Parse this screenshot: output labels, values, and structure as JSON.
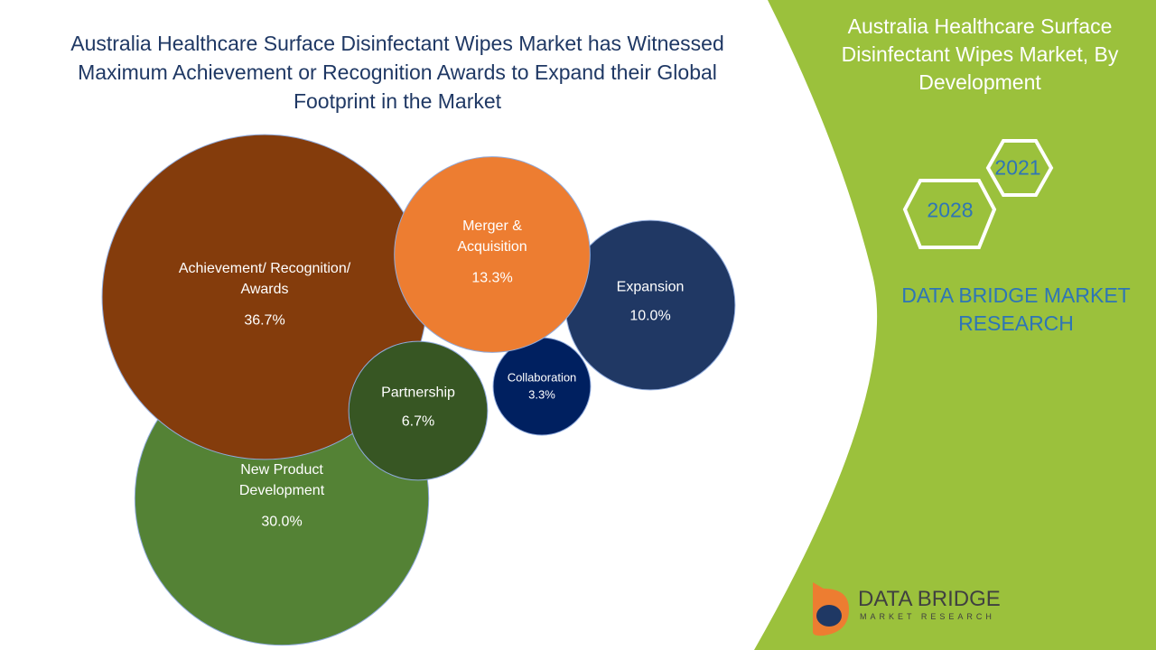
{
  "chart_data": {
    "type": "bubble",
    "title": "Australia Healthcare Surface Disinfectant Wipes Market has Witnessed Maximum Achievement or Recognition Awards to Expand their Global Footprint in the Market",
    "categories": [
      "New Product Development",
      "Achievement/ Recognition/ Awards",
      "Expansion",
      "Collaboration",
      "Merger & Acquisition",
      "Partnership"
    ],
    "values": [
      30.0,
      36.7,
      10.0,
      3.3,
      13.3,
      6.7
    ],
    "value_labels": [
      "30.0%",
      "36.7%",
      "10.0%",
      "3.3%",
      "13.3%",
      "6.7%"
    ],
    "colors": [
      "#548235",
      "#843c0c",
      "#203864",
      "#002060",
      "#ed7d31",
      "#375623"
    ]
  },
  "sidebar": {
    "title": "Australia Healthcare Surface Disinfectant Wipes Market, By Development",
    "years": [
      "2021",
      "2028"
    ],
    "brand": "DATA BRIDGE MARKET RESEARCH"
  },
  "logo": {
    "name": "DATA BRIDGE",
    "tagline": "MARKET RESEARCH"
  }
}
